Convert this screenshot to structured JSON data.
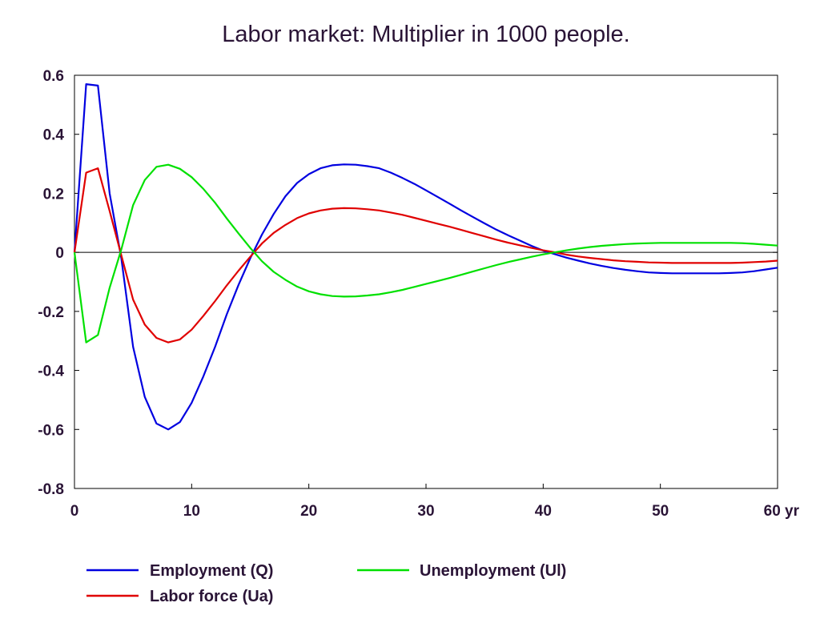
{
  "chart_data": {
    "type": "line",
    "title": "Labor market: Multiplier in 1000 people.",
    "xlabel": "",
    "ylabel": "",
    "x_unit_label": "yr",
    "xlim": [
      0,
      60
    ],
    "ylim": [
      -0.8,
      0.6
    ],
    "x_ticks": [
      0,
      10,
      20,
      30,
      40,
      50,
      60
    ],
    "x_tick_labels": [
      "0",
      "10",
      "20",
      "30",
      "40",
      "50",
      "60 yr"
    ],
    "y_ticks": [
      -0.8,
      -0.6,
      -0.4,
      -0.2,
      0,
      0.2,
      0.4,
      0.6
    ],
    "y_tick_labels": [
      "-0.8",
      "-0.6",
      "-0.4",
      "-0.2",
      "0",
      "0.2",
      "0.4",
      "0.6"
    ],
    "zero_line": true,
    "grid": false,
    "legend_position": "bottom",
    "series": [
      {
        "name": "Employment (Q)",
        "color": "#0000e0",
        "x": [
          0,
          1,
          2,
          3,
          4,
          5,
          6,
          7,
          8,
          9,
          10,
          11,
          12,
          13,
          14,
          15,
          16,
          17,
          18,
          19,
          20,
          21,
          22,
          23,
          24,
          25,
          26,
          27,
          28,
          29,
          30,
          31,
          32,
          33,
          34,
          35,
          36,
          37,
          38,
          39,
          40,
          41,
          42,
          43,
          44,
          45,
          46,
          47,
          48,
          49,
          50,
          51,
          52,
          53,
          54,
          55,
          56,
          57,
          58,
          59,
          60
        ],
        "values": [
          0,
          0.57,
          0.565,
          0.2,
          -0.02,
          -0.32,
          -0.49,
          -0.58,
          -0.6,
          -0.575,
          -0.51,
          -0.42,
          -0.32,
          -0.21,
          -0.11,
          -0.02,
          0.06,
          0.13,
          0.19,
          0.235,
          0.265,
          0.285,
          0.295,
          0.298,
          0.297,
          0.292,
          0.285,
          0.27,
          0.252,
          0.232,
          0.21,
          0.188,
          0.165,
          0.142,
          0.12,
          0.098,
          0.077,
          0.058,
          0.04,
          0.022,
          0.006,
          -0.006,
          -0.018,
          -0.028,
          -0.038,
          -0.046,
          -0.053,
          -0.059,
          -0.064,
          -0.068,
          -0.07,
          -0.071,
          -0.071,
          -0.071,
          -0.071,
          -0.071,
          -0.07,
          -0.068,
          -0.064,
          -0.058,
          -0.052
        ]
      },
      {
        "name": "Labor force (Ua)",
        "color": "#e00000",
        "x": [
          0,
          1,
          2,
          3,
          4,
          5,
          6,
          7,
          8,
          9,
          10,
          11,
          12,
          13,
          14,
          15,
          16,
          17,
          18,
          19,
          20,
          21,
          22,
          23,
          24,
          25,
          26,
          27,
          28,
          29,
          30,
          31,
          32,
          33,
          34,
          35,
          36,
          37,
          38,
          39,
          40,
          41,
          42,
          43,
          44,
          45,
          46,
          47,
          48,
          49,
          50,
          51,
          52,
          53,
          54,
          55,
          56,
          57,
          58,
          59,
          60
        ],
        "values": [
          0,
          0.27,
          0.285,
          0.14,
          -0.01,
          -0.16,
          -0.245,
          -0.29,
          -0.305,
          -0.295,
          -0.262,
          -0.215,
          -0.165,
          -0.112,
          -0.062,
          -0.015,
          0.03,
          0.066,
          0.093,
          0.116,
          0.132,
          0.142,
          0.148,
          0.15,
          0.149,
          0.146,
          0.142,
          0.135,
          0.127,
          0.117,
          0.107,
          0.097,
          0.087,
          0.076,
          0.065,
          0.054,
          0.043,
          0.033,
          0.024,
          0.015,
          0.007,
          0.0,
          -0.008,
          -0.014,
          -0.019,
          -0.023,
          -0.027,
          -0.03,
          -0.032,
          -0.034,
          -0.035,
          -0.036,
          -0.036,
          -0.036,
          -0.036,
          -0.036,
          -0.036,
          -0.035,
          -0.033,
          -0.031,
          -0.028
        ]
      },
      {
        "name": "Unemployment (Ul)",
        "color": "#00e000",
        "x": [
          0,
          1,
          2,
          3,
          4,
          5,
          6,
          7,
          8,
          9,
          10,
          11,
          12,
          13,
          14,
          15,
          16,
          17,
          18,
          19,
          20,
          21,
          22,
          23,
          24,
          25,
          26,
          27,
          28,
          29,
          30,
          31,
          32,
          33,
          34,
          35,
          36,
          37,
          38,
          39,
          40,
          41,
          42,
          43,
          44,
          45,
          46,
          47,
          48,
          49,
          50,
          51,
          52,
          53,
          54,
          55,
          56,
          57,
          58,
          59,
          60
        ],
        "values": [
          0,
          -0.305,
          -0.28,
          -0.12,
          0.01,
          0.16,
          0.245,
          0.29,
          0.297,
          0.283,
          0.255,
          0.215,
          0.168,
          0.115,
          0.064,
          0.015,
          -0.03,
          -0.066,
          -0.093,
          -0.116,
          -0.132,
          -0.142,
          -0.148,
          -0.15,
          -0.149,
          -0.146,
          -0.142,
          -0.135,
          -0.127,
          -0.117,
          -0.107,
          -0.097,
          -0.087,
          -0.076,
          -0.065,
          -0.054,
          -0.043,
          -0.033,
          -0.024,
          -0.015,
          -0.007,
          0.0,
          0.007,
          0.013,
          0.018,
          0.022,
          0.025,
          0.028,
          0.03,
          0.031,
          0.032,
          0.032,
          0.032,
          0.032,
          0.032,
          0.032,
          0.032,
          0.031,
          0.029,
          0.026,
          0.023
        ]
      }
    ]
  }
}
